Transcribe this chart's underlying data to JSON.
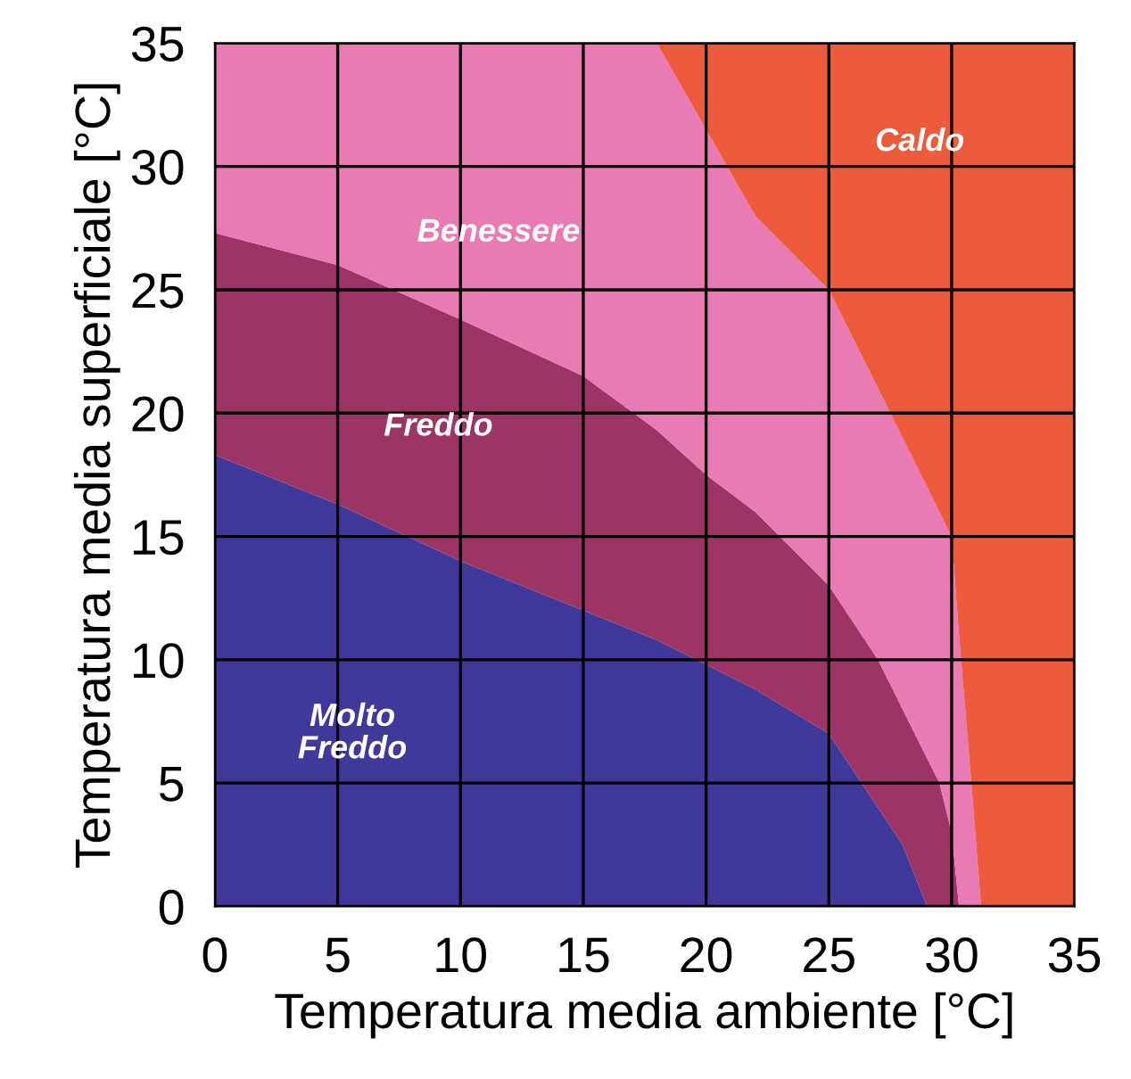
{
  "chart_data": {
    "type": "area",
    "stacked": true,
    "xlabel": "Temperatura media ambiente [°C]",
    "ylabel": "Temperatura media superficiale [°C]",
    "x": [
      0,
      5,
      10,
      15,
      18,
      20,
      22,
      25,
      27,
      28,
      29,
      29.5,
      30,
      30.3,
      30.8,
      31.2,
      35
    ],
    "series": [
      {
        "color": "#40399a",
        "values": [
          18.3,
          16.3,
          14,
          12,
          10.8,
          9.8,
          8.8,
          7,
          4,
          2.5,
          0,
          0,
          0,
          0,
          0,
          0,
          0
        ]
      },
      {
        "color": "#9a3565",
        "values": [
          9,
          9.7,
          9.8,
          9.5,
          8.5,
          7.7,
          7.2,
          6,
          6,
          5.5,
          6,
          5,
          3,
          0,
          0,
          0,
          0
        ]
      },
      {
        "color": "#e87ab4",
        "values": [
          7.7,
          9,
          11.2,
          13.5,
          15.7,
          14,
          12,
          12,
          11,
          11,
          11,
          11,
          12,
          11,
          5,
          0,
          0
        ]
      },
      {
        "color": "#ee5a3c",
        "values": [
          null,
          null,
          null,
          null,
          0,
          3.5,
          7,
          10,
          14,
          16,
          18,
          19,
          20,
          24,
          30,
          35,
          35
        ]
      }
    ],
    "annotations": [
      "Caldo",
      "Benessere",
      "Freddo",
      "Molto\nFreddo"
    ],
    "xlim": [
      0,
      35
    ],
    "ylim": [
      0,
      35
    ],
    "xticks": [
      0,
      5,
      10,
      15,
      20,
      25,
      30,
      35
    ],
    "yticks": [
      0,
      5,
      10,
      15,
      20,
      25,
      30,
      35
    ],
    "grid": true
  }
}
